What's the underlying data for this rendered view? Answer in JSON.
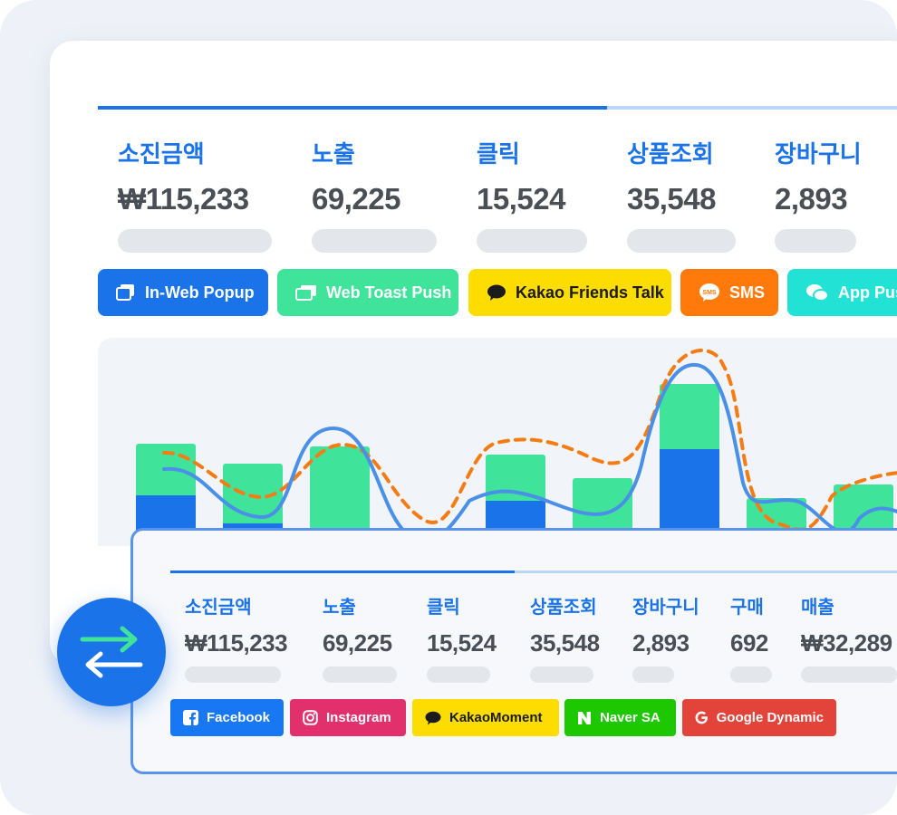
{
  "top_metrics": [
    {
      "label": "소진금액",
      "value": "₩115,233"
    },
    {
      "label": "노출",
      "value": "69,225"
    },
    {
      "label": "클릭",
      "value": "15,524"
    },
    {
      "label": "상품조회",
      "value": "35,548"
    },
    {
      "label": "장바구니",
      "value": "2,893"
    }
  ],
  "channels": [
    {
      "label": "In-Web Popup",
      "bg": "#1a73e8",
      "fg": "#ffffff",
      "icon": "popup-icon"
    },
    {
      "label": "Web Toast Push",
      "bg": "#3fe49a",
      "fg": "#ffffff",
      "icon": "toast-icon"
    },
    {
      "label": "Kakao Friends Talk",
      "bg": "#fddc00",
      "fg": "#1b1b1b",
      "icon": "chat-bubble-icon"
    },
    {
      "label": "SMS",
      "bg": "#ff7a0a",
      "fg": "#ffffff",
      "icon": "sms-icon"
    },
    {
      "label": "App Push",
      "bg": "#22e2d6",
      "fg": "#ffffff",
      "icon": "chat-bubbles-icon"
    }
  ],
  "bottom_metrics": [
    {
      "label": "소진금액",
      "value": "₩115,233"
    },
    {
      "label": "노출",
      "value": "69,225"
    },
    {
      "label": "클릭",
      "value": "15,524"
    },
    {
      "label": "상품조회",
      "value": "35,548"
    },
    {
      "label": "장바구니",
      "value": "2,893"
    },
    {
      "label": "구매",
      "value": "692"
    },
    {
      "label": "매출",
      "value": "₩32,289"
    }
  ],
  "ad_channels": [
    {
      "label": "Facebook",
      "bg": "#1877f2",
      "fg": "#ffffff",
      "icon": "facebook-icon"
    },
    {
      "label": "Instagram",
      "bg": "#e1306c",
      "fg": "#ffffff",
      "icon": "instagram-icon"
    },
    {
      "label": "KakaoMoment",
      "bg": "#fddc00",
      "fg": "#1b1b1b",
      "icon": "chat-bubble-icon"
    },
    {
      "label": "Naver SA",
      "bg": "#1ec800",
      "fg": "#ffffff",
      "icon": "naver-icon"
    },
    {
      "label": "Google Dynamic",
      "bg": "#e2443a",
      "fg": "#ffffff",
      "icon": "google-icon"
    }
  ],
  "colors": {
    "accent": "#1a73e8",
    "green": "#3fe49a",
    "orange": "#f57c14",
    "line": "#4a8fe8"
  }
}
